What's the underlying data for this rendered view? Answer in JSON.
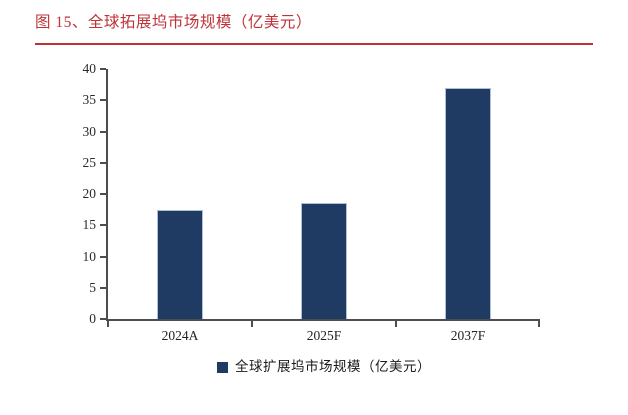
{
  "figure": {
    "title": "图 15、全球拓展坞市场规模（亿美元）",
    "title_color": "#bf3338",
    "rule_color": "#bf3338"
  },
  "chart_data": {
    "type": "bar",
    "categories": [
      "2024A",
      "2025F",
      "2037F"
    ],
    "values": [
      17.5,
      18.6,
      37.0
    ],
    "series_name": "全球扩展坞市场规模（亿美元）",
    "title": "全球拓展坞市场规模（亿美元）",
    "xlabel": "",
    "ylabel": "",
    "ylim": [
      0,
      40
    ],
    "yticks": [
      0,
      5,
      10,
      15,
      20,
      25,
      30,
      35,
      40
    ],
    "grid": false,
    "legend_position": "bottom",
    "bar_color": "#1f3a63",
    "bar_border_color": "#aebfd6",
    "axis_color": "#4d4d4d"
  },
  "legend": {
    "label": "全球扩展坞市场规模（亿美元）",
    "swatch_color": "#1f3a63"
  }
}
